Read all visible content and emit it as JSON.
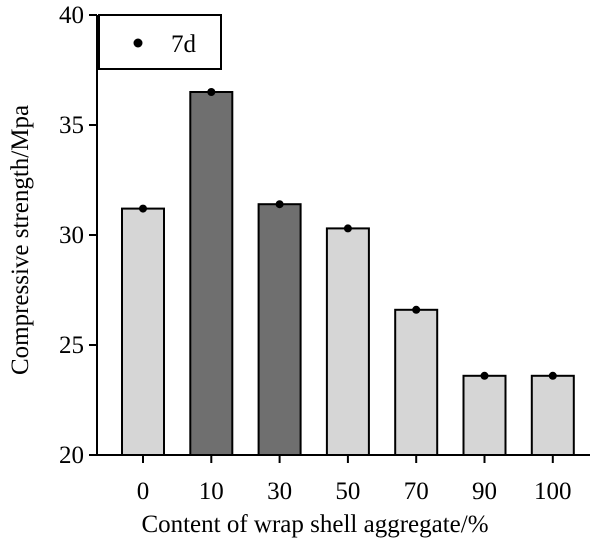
{
  "chart_data": {
    "type": "bar",
    "categories": [
      "0",
      "10",
      "30",
      "50",
      "70",
      "90",
      "100"
    ],
    "values": [
      31.2,
      36.5,
      31.4,
      30.3,
      26.6,
      23.6,
      23.6
    ],
    "bar_colors": [
      "#d6d6d6",
      "#6f6f6f",
      "#6f6f6f",
      "#d6d6d6",
      "#d6d6d6",
      "#d6d6d6",
      "#d6d6d6"
    ],
    "xlabel": "Content of wrap shell  aggregate/%",
    "ylabel": "Compressive strength/Mpa",
    "ylim": [
      20,
      40
    ],
    "yticks": [
      20,
      25,
      30,
      35,
      40
    ],
    "legend": {
      "label": "7d",
      "position": "top-left",
      "marker": "circle"
    },
    "grid": false,
    "marker_color": "#000000"
  }
}
